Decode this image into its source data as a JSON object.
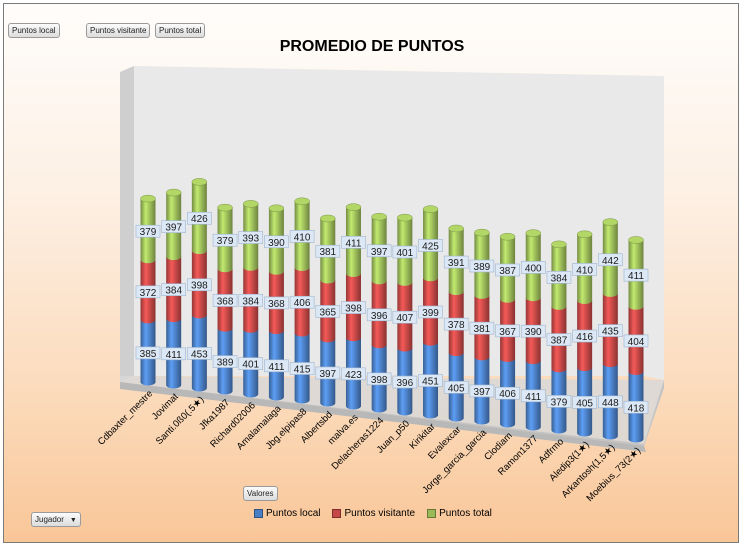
{
  "field_buttons": {
    "puntos_local": "Puntos local",
    "puntos_visitante": "Puntos visitante",
    "puntos_total": "Puntos total",
    "valores": "Valores",
    "jugador": "Jugador"
  },
  "colors": {
    "local": "#4a7ec4",
    "visitante": "#c44846",
    "total": "#9bbb59"
  },
  "chart_data": {
    "type": "bar",
    "stacked": true,
    "title": "PROMEDIO DE PUNTOS",
    "categories": [
      "Cdbaxter_mestre",
      "Jovimat",
      "Santi.0ß0(.5★)",
      "Jfka1987",
      "Richard02006",
      "Amalamalaga",
      "Jbg.elpipas8",
      "Albertsbd",
      "malva.es",
      "Delacheras1224",
      "Juan_p50",
      "Kirikitar",
      "Evalexcar",
      "Jorge_garcia_garcia",
      "Clodiam",
      "Ramon1377",
      "Adfrmo",
      "Aledip3(1★)",
      "Arkantosh(1,5★)",
      "Moebius_73(2★)"
    ],
    "series": [
      {
        "name": "Puntos local",
        "values": [
          385,
          411,
          453,
          389,
          401,
          411,
          415,
          397,
          423,
          398,
          396,
          451,
          405,
          397,
          406,
          411,
          379,
          405,
          448,
          418
        ]
      },
      {
        "name": "Puntos visitante",
        "values": [
          372,
          384,
          398,
          368,
          384,
          368,
          406,
          365,
          398,
          396,
          407,
          399,
          378,
          381,
          367,
          390,
          387,
          416,
          435,
          404
        ]
      },
      {
        "name": "Puntos total",
        "values": [
          379,
          397,
          426,
          379,
          393,
          390,
          410,
          381,
          411,
          397,
          401,
          425,
          391,
          389,
          387,
          400,
          384,
          410,
          442,
          411
        ]
      }
    ],
    "legend": [
      "Puntos local",
      "Puntos visitante",
      "Puntos total"
    ],
    "legend_position": "bottom",
    "ylim": [
      0,
      1400
    ]
  }
}
